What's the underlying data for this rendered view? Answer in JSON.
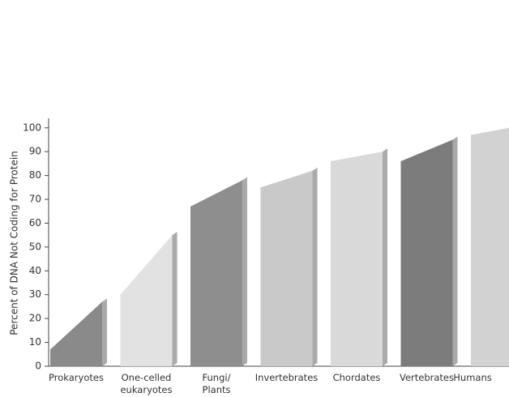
{
  "chart_data": {
    "type": "slanted-bar",
    "y_label": "Percent of DNA Not Coding for Protein",
    "categories": [
      "Prokaryotes",
      "One-celled\neukaryotes",
      "Fungi/\nPlants",
      "Invertebrates",
      "Chordates",
      "Vertebrates",
      "Humans"
    ],
    "low_values": [
      7,
      30,
      67,
      75,
      86,
      86,
      97
    ],
    "values": [
      27,
      55,
      78,
      82,
      90,
      95,
      100
    ],
    "colors": [
      "#8a8a8a",
      "#e2e2e2",
      "#8e8e8e",
      "#c9c9c9",
      "#d9d9d9",
      "#7c7c7c",
      "#d2d2d2"
    ],
    "ylim": [
      0,
      104
    ],
    "yticks": [
      0,
      10,
      20,
      30,
      40,
      50,
      60,
      70,
      80,
      90,
      100
    ]
  }
}
